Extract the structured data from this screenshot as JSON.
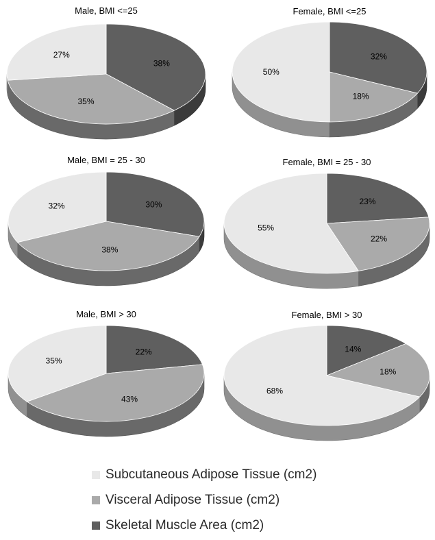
{
  "colors": {
    "subcutaneous": "#e8e8e8",
    "visceral": "#aaaaaa",
    "muscle": "#5f5f5f"
  },
  "legend": [
    {
      "key": "subcutaneous",
      "label": "Subcutaneous Adipose Tissue (cm2)"
    },
    {
      "key": "visceral",
      "label": "Visceral Adipose Tissue (cm2)"
    },
    {
      "key": "muscle",
      "label": "Skeletal Muscle Area (cm2)"
    }
  ],
  "chart_data": [
    {
      "type": "pie",
      "title": "Male, BMI <=25",
      "labels": [
        "Subcutaneous Adipose Tissue (cm2)",
        "Visceral Adipose Tissue (cm2)",
        "Skeletal Muscle Area (cm2)"
      ],
      "values": [
        27,
        35,
        38
      ],
      "value_labels": [
        "27%",
        "35%",
        "38%"
      ],
      "style": "3d",
      "legend": "bottom"
    },
    {
      "type": "pie",
      "title": "Female, BMI <=25",
      "labels": [
        "Subcutaneous Adipose Tissue (cm2)",
        "Visceral Adipose Tissue (cm2)",
        "Skeletal Muscle Area (cm2)"
      ],
      "values": [
        50,
        18,
        32
      ],
      "value_labels": [
        "50%",
        "18%",
        "32%"
      ],
      "style": "3d",
      "legend": "bottom"
    },
    {
      "type": "pie",
      "title": "Male, BMI = 25 - 30",
      "labels": [
        "Subcutaneous Adipose Tissue (cm2)",
        "Visceral Adipose Tissue (cm2)",
        "Skeletal Muscle Area (cm2)"
      ],
      "values": [
        32,
        38,
        30
      ],
      "value_labels": [
        "32%",
        "38%",
        "30%"
      ],
      "style": "3d",
      "legend": "bottom"
    },
    {
      "type": "pie",
      "title": "Female, BMI = 25 - 30",
      "labels": [
        "Subcutaneous Adipose Tissue (cm2)",
        "Visceral Adipose Tissue (cm2)",
        "Skeletal Muscle Area (cm2)"
      ],
      "values": [
        55,
        22,
        23
      ],
      "value_labels": [
        "55%",
        "22%",
        "23%"
      ],
      "style": "3d",
      "legend": "bottom"
    },
    {
      "type": "pie",
      "title": "Male, BMI > 30",
      "labels": [
        "Subcutaneous Adipose Tissue (cm2)",
        "Visceral Adipose Tissue (cm2)",
        "Skeletal Muscle Area (cm2)"
      ],
      "values": [
        35,
        43,
        22
      ],
      "value_labels": [
        "35%",
        "43%",
        "22%"
      ],
      "style": "3d",
      "legend": "bottom"
    },
    {
      "type": "pie",
      "title": "Female, BMI > 30",
      "labels": [
        "Subcutaneous Adipose Tissue (cm2)",
        "Visceral Adipose Tissue (cm2)",
        "Skeletal Muscle Area (cm2)"
      ],
      "values": [
        68,
        18,
        14
      ],
      "value_labels": [
        "68%",
        "18%",
        "14%"
      ],
      "style": "3d",
      "legend": "bottom"
    }
  ]
}
